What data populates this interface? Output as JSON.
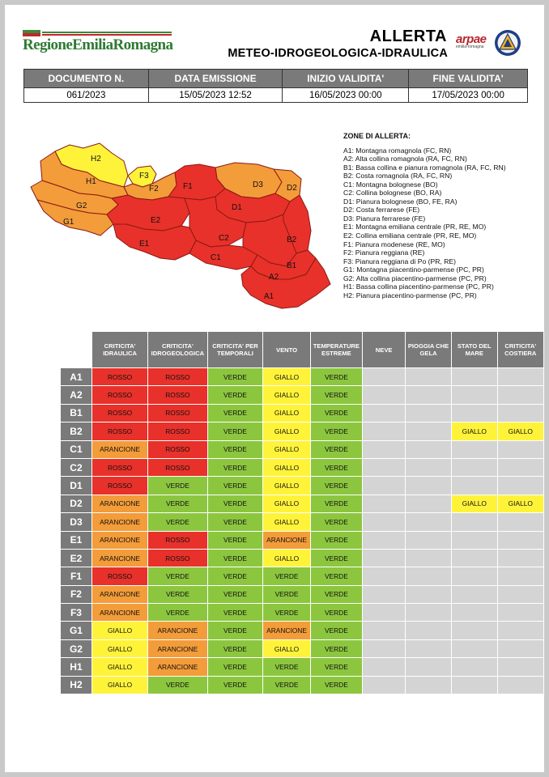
{
  "header": {
    "logo_text": "RegioneEmiliaRomagna",
    "title_line1": "ALLERTA",
    "title_line2": "METEO-IDROGEOLOGICA-IDRAULICA",
    "arpae_name": "arpae",
    "arpae_sub": "emilia-romagna"
  },
  "document": {
    "columns": [
      "DOCUMENTO N.",
      "DATA EMISSIONE",
      "INIZIO VALIDITA'",
      "FINE VALIDITA'"
    ],
    "values": [
      "061/2023",
      "15/05/2023 12:52",
      "16/05/2023 00:00",
      "17/05/2023 00:00"
    ]
  },
  "zones": {
    "title": "ZONE DI ALLERTA:",
    "items": [
      "A1: Montagna romagnola (FC, RN)",
      "A2: Alta collina romagnola (RA, FC, RN)",
      "B1: Bassa collina e pianura romagnola (RA, FC, RN)",
      "B2: Costa romagnola (RA, FC, RN)",
      "C1: Montagna bolognese (BO)",
      "C2: Collina bolognese (BO, RA)",
      "D1: Pianura bolognese (BO, FE, RA)",
      "D2: Costa ferrarese (FE)",
      "D3: Pianura ferrarese (FE)",
      "E1: Montagna emiliana centrale (PR, RE, MO)",
      "E2: Collina emiliana centrale (PR, RE, MO)",
      "F1: Pianura modenese (RE, MO)",
      "F2: Pianura reggiana (RE)",
      "F3: Pianura reggiana di Po (PR, RE)",
      "G1: Montagna piacentino-parmense (PC, PR)",
      "G2: Alta collina piacentino-parmense (PC, PR)",
      "H1: Bassa collina piacentino-parmense (PC, PR)",
      "H2: Pianura piacentino-parmense (PC, PR)"
    ]
  },
  "map_labels": [
    "H2",
    "H1",
    "G2",
    "G1",
    "F3",
    "F2",
    "F1",
    "E2",
    "E1",
    "D3",
    "D2",
    "D1",
    "C2",
    "C1",
    "B2",
    "B1",
    "A2",
    "A1"
  ],
  "colors": {
    "ROSSO": "#e8312a",
    "ARANCIONE": "#f39c3a",
    "GIALLO": "#fff33a",
    "VERDE": "#8cc63f",
    "empty": "#d4d4d4",
    "header_gray": "#7a7a7a"
  },
  "table": {
    "columns": [
      "CRITICITA' IDRAULICA",
      "CRITICITA' IDROGEOLOGICA",
      "CRITICITA' PER TEMPORALI",
      "VENTO",
      "TEMPERATURE ESTREME",
      "NEVE",
      "PIOGGIA CHE GELA",
      "STATO DEL MARE",
      "CRITICITA' COSTIERA"
    ],
    "rows": [
      {
        "zone": "A1",
        "values": [
          "ROSSO",
          "ROSSO",
          "VERDE",
          "GIALLO",
          "VERDE",
          "",
          "",
          "",
          ""
        ]
      },
      {
        "zone": "A2",
        "values": [
          "ROSSO",
          "ROSSO",
          "VERDE",
          "GIALLO",
          "VERDE",
          "",
          "",
          "",
          ""
        ]
      },
      {
        "zone": "B1",
        "values": [
          "ROSSO",
          "ROSSO",
          "VERDE",
          "GIALLO",
          "VERDE",
          "",
          "",
          "",
          ""
        ]
      },
      {
        "zone": "B2",
        "values": [
          "ROSSO",
          "ROSSO",
          "VERDE",
          "GIALLO",
          "VERDE",
          "",
          "",
          "GIALLO",
          "GIALLO"
        ]
      },
      {
        "zone": "C1",
        "values": [
          "ARANCIONE",
          "ROSSO",
          "VERDE",
          "GIALLO",
          "VERDE",
          "",
          "",
          "",
          ""
        ]
      },
      {
        "zone": "C2",
        "values": [
          "ROSSO",
          "ROSSO",
          "VERDE",
          "GIALLO",
          "VERDE",
          "",
          "",
          "",
          ""
        ]
      },
      {
        "zone": "D1",
        "values": [
          "ROSSO",
          "VERDE",
          "VERDE",
          "GIALLO",
          "VERDE",
          "",
          "",
          "",
          ""
        ]
      },
      {
        "zone": "D2",
        "values": [
          "ARANCIONE",
          "VERDE",
          "VERDE",
          "GIALLO",
          "VERDE",
          "",
          "",
          "GIALLO",
          "GIALLO"
        ]
      },
      {
        "zone": "D3",
        "values": [
          "ARANCIONE",
          "VERDE",
          "VERDE",
          "GIALLO",
          "VERDE",
          "",
          "",
          "",
          ""
        ]
      },
      {
        "zone": "E1",
        "values": [
          "ARANCIONE",
          "ROSSO",
          "VERDE",
          "ARANCIONE",
          "VERDE",
          "",
          "",
          "",
          ""
        ]
      },
      {
        "zone": "E2",
        "values": [
          "ARANCIONE",
          "ROSSO",
          "VERDE",
          "GIALLO",
          "VERDE",
          "",
          "",
          "",
          ""
        ]
      },
      {
        "zone": "F1",
        "values": [
          "ROSSO",
          "VERDE",
          "VERDE",
          "VERDE",
          "VERDE",
          "",
          "",
          "",
          ""
        ]
      },
      {
        "zone": "F2",
        "values": [
          "ARANCIONE",
          "VERDE",
          "VERDE",
          "VERDE",
          "VERDE",
          "",
          "",
          "",
          ""
        ]
      },
      {
        "zone": "F3",
        "values": [
          "ARANCIONE",
          "VERDE",
          "VERDE",
          "VERDE",
          "VERDE",
          "",
          "",
          "",
          ""
        ]
      },
      {
        "zone": "G1",
        "values": [
          "GIALLO",
          "ARANCIONE",
          "VERDE",
          "ARANCIONE",
          "VERDE",
          "",
          "",
          "",
          ""
        ]
      },
      {
        "zone": "G2",
        "values": [
          "GIALLO",
          "ARANCIONE",
          "VERDE",
          "GIALLO",
          "VERDE",
          "",
          "",
          "",
          ""
        ]
      },
      {
        "zone": "H1",
        "values": [
          "GIALLO",
          "ARANCIONE",
          "VERDE",
          "VERDE",
          "VERDE",
          "",
          "",
          "",
          ""
        ]
      },
      {
        "zone": "H2",
        "values": [
          "GIALLO",
          "VERDE",
          "VERDE",
          "VERDE",
          "VERDE",
          "",
          "",
          "",
          ""
        ]
      }
    ]
  }
}
